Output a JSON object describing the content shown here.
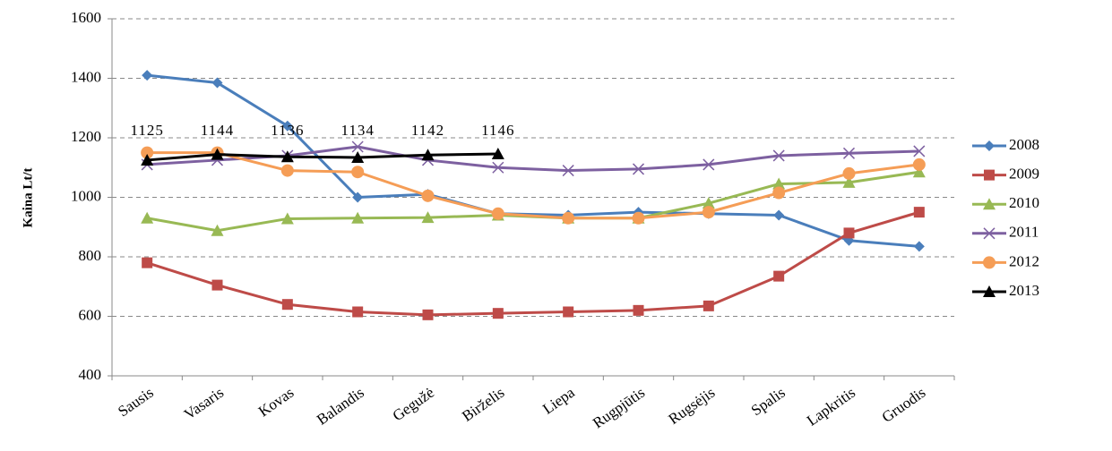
{
  "chart_data": {
    "type": "line",
    "y_label": "Kaina Lt/t",
    "categories": [
      "Sausis",
      "Vasaris",
      "Kovas",
      "Balandis",
      "Gegužė",
      "Birželis",
      "Liepa",
      "Rugpjūtis",
      "Rugsėjis",
      "Spalis",
      "Lapkritis",
      "Gruodis"
    ],
    "series": [
      {
        "name": "2008",
        "color": "#4a7ebb",
        "marker": "diamond",
        "values": [
          1410,
          1385,
          1240,
          1000,
          1010,
          945,
          940,
          950,
          945,
          940,
          855,
          835
        ]
      },
      {
        "name": "2009",
        "color": "#be4b48",
        "marker": "square",
        "values": [
          780,
          705,
          640,
          615,
          605,
          610,
          615,
          620,
          635,
          735,
          880,
          950
        ]
      },
      {
        "name": "2010",
        "color": "#98b954",
        "marker": "triangle",
        "values": [
          930,
          888,
          928,
          930,
          932,
          940,
          930,
          930,
          980,
          1045,
          1050,
          1085
        ]
      },
      {
        "name": "2011",
        "color": "#7d60a0",
        "marker": "x",
        "values": [
          1110,
          1125,
          1140,
          1170,
          1125,
          1100,
          1090,
          1095,
          1110,
          1140,
          1148,
          1155
        ]
      },
      {
        "name": "2012",
        "color": "#f59d56",
        "marker": "circle",
        "values": [
          1150,
          1150,
          1090,
          1085,
          1005,
          945,
          930,
          930,
          950,
          1015,
          1080,
          1110
        ]
      },
      {
        "name": "2013",
        "color": "#000000",
        "marker": "triangle",
        "data_labels": true,
        "values": [
          1125,
          1144,
          1136,
          1134,
          1142,
          1146,
          null,
          null,
          null,
          null,
          null,
          null
        ]
      }
    ],
    "ylim": [
      400,
      1600
    ],
    "yticks": [
      400,
      600,
      800,
      1000,
      1200,
      1400,
      1600
    ],
    "grid": true,
    "legend": "right"
  }
}
